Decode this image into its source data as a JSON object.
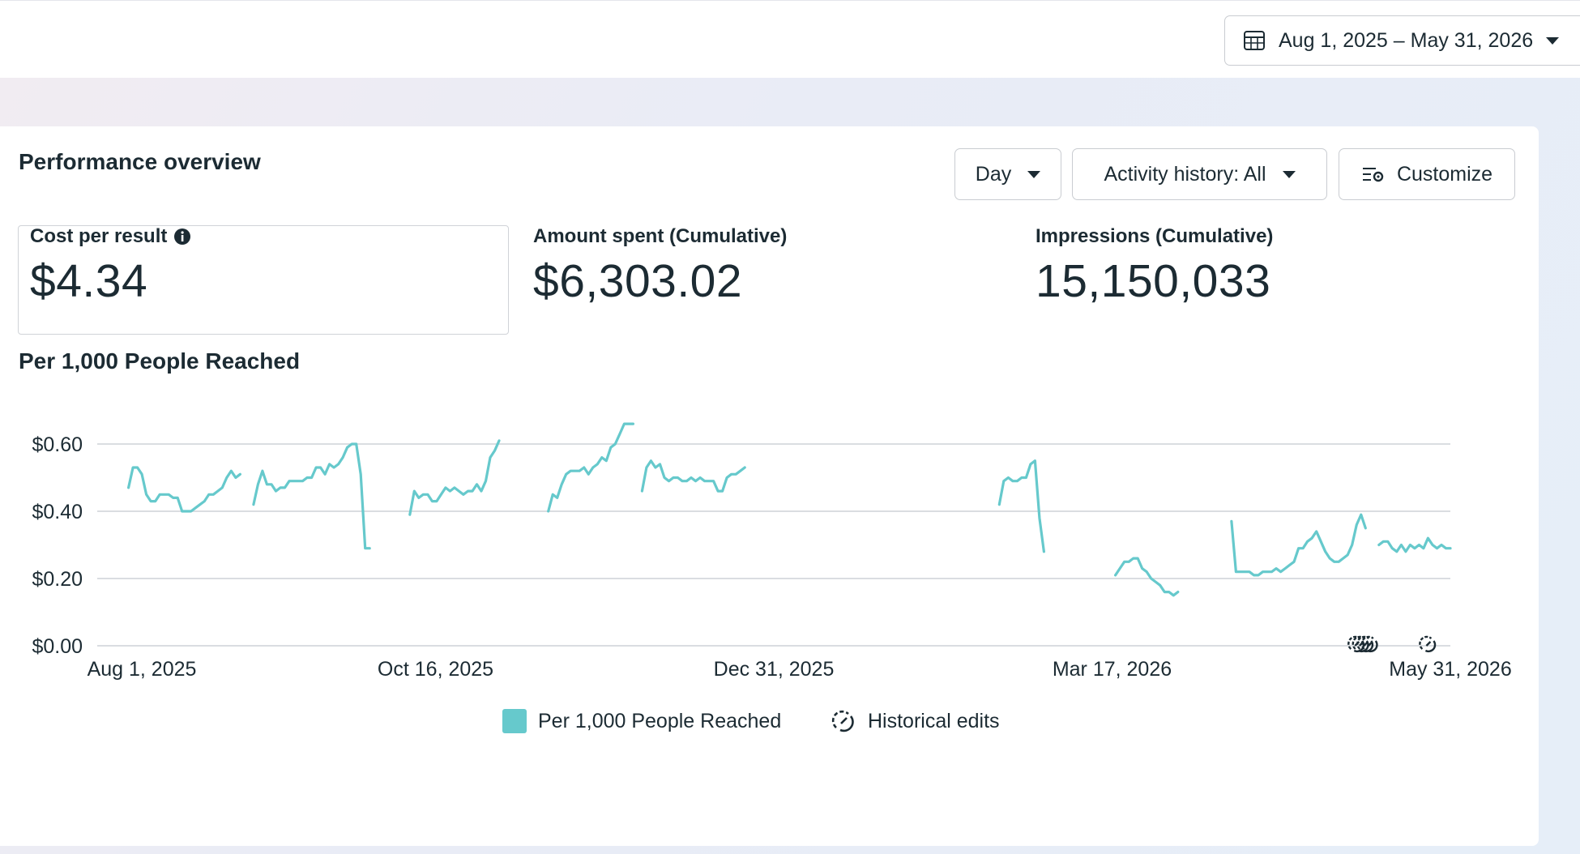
{
  "header": {
    "date_range": "Aug 1, 2025 – May 31, 2026"
  },
  "card": {
    "title": "Performance overview",
    "controls": {
      "granularity": "Day",
      "activity_history": "Activity history: All",
      "customize": "Customize"
    }
  },
  "metrics": [
    {
      "label": "Cost per result",
      "value": "$4.34"
    },
    {
      "label": "Amount spent (Cumulative)",
      "value": "$6,303.02"
    },
    {
      "label": "Impressions (Cumulative)",
      "value": "15,150,033"
    }
  ],
  "chart_title": "Per 1,000 People Reached",
  "legend": {
    "series": "Per 1,000 People Reached",
    "edits": "Historical edits"
  },
  "colors": {
    "series": "#66c9cc",
    "grid": "#dadde1",
    "text": "#1c2b33"
  },
  "chart_data": {
    "type": "line",
    "title": "Per 1,000 People Reached",
    "x_start": "2025-08-01",
    "x_end": "2026-05-31",
    "xticks": [
      "Aug 1, 2025",
      "Oct 16, 2025",
      "Dec 31, 2025",
      "Mar 17, 2026",
      "May 31, 2026"
    ],
    "yticks": [
      "$0.00",
      "$0.20",
      "$0.40",
      "$0.60"
    ],
    "ylim": [
      0,
      0.6
    ],
    "grid": true,
    "legend_position": "bottom",
    "series": [
      {
        "name": "Per 1,000 People Reached",
        "segments": [
          [
            [
              "2025-08-08",
              0.47
            ],
            [
              "2025-08-09",
              0.53
            ],
            [
              "2025-08-10",
              0.53
            ],
            [
              "2025-08-11",
              0.51
            ],
            [
              "2025-08-12",
              0.45
            ],
            [
              "2025-08-13",
              0.43
            ],
            [
              "2025-08-14",
              0.43
            ],
            [
              "2025-08-15",
              0.45
            ],
            [
              "2025-08-16",
              0.45
            ],
            [
              "2025-08-17",
              0.45
            ],
            [
              "2025-08-18",
              0.44
            ],
            [
              "2025-08-19",
              0.44
            ],
            [
              "2025-08-20",
              0.4
            ],
            [
              "2025-08-21",
              0.4
            ],
            [
              "2025-08-22",
              0.4
            ],
            [
              "2025-08-23",
              0.41
            ],
            [
              "2025-08-24",
              0.42
            ],
            [
              "2025-08-25",
              0.43
            ],
            [
              "2025-08-26",
              0.45
            ],
            [
              "2025-08-27",
              0.45
            ],
            [
              "2025-08-28",
              0.46
            ],
            [
              "2025-08-29",
              0.47
            ],
            [
              "2025-08-30",
              0.5
            ],
            [
              "2025-08-31",
              0.52
            ],
            [
              "2025-09-01",
              0.5
            ],
            [
              "2025-09-02",
              0.51
            ]
          ],
          [
            [
              "2025-09-05",
              0.42
            ],
            [
              "2025-09-06",
              0.48
            ],
            [
              "2025-09-07",
              0.52
            ],
            [
              "2025-09-08",
              0.48
            ],
            [
              "2025-09-09",
              0.48
            ],
            [
              "2025-09-10",
              0.46
            ],
            [
              "2025-09-11",
              0.47
            ],
            [
              "2025-09-12",
              0.47
            ],
            [
              "2025-09-13",
              0.49
            ],
            [
              "2025-09-14",
              0.49
            ],
            [
              "2025-09-15",
              0.49
            ],
            [
              "2025-09-16",
              0.49
            ],
            [
              "2025-09-17",
              0.5
            ],
            [
              "2025-09-18",
              0.5
            ],
            [
              "2025-09-19",
              0.53
            ],
            [
              "2025-09-20",
              0.53
            ],
            [
              "2025-09-21",
              0.51
            ],
            [
              "2025-09-22",
              0.54
            ],
            [
              "2025-09-23",
              0.53
            ],
            [
              "2025-09-24",
              0.54
            ],
            [
              "2025-09-25",
              0.56
            ],
            [
              "2025-09-26",
              0.59
            ],
            [
              "2025-09-27",
              0.6
            ],
            [
              "2025-09-28",
              0.6
            ],
            [
              "2025-09-29",
              0.51
            ],
            [
              "2025-09-30",
              0.29
            ],
            [
              "2025-10-01",
              0.29
            ]
          ],
          [
            [
              "2025-10-10",
              0.39
            ],
            [
              "2025-10-11",
              0.46
            ],
            [
              "2025-10-12",
              0.44
            ],
            [
              "2025-10-13",
              0.45
            ],
            [
              "2025-10-14",
              0.45
            ],
            [
              "2025-10-15",
              0.43
            ],
            [
              "2025-10-16",
              0.43
            ],
            [
              "2025-10-17",
              0.45
            ],
            [
              "2025-10-18",
              0.47
            ],
            [
              "2025-10-19",
              0.46
            ],
            [
              "2025-10-20",
              0.47
            ],
            [
              "2025-10-21",
              0.46
            ],
            [
              "2025-10-22",
              0.45
            ],
            [
              "2025-10-23",
              0.46
            ],
            [
              "2025-10-24",
              0.46
            ],
            [
              "2025-10-25",
              0.48
            ],
            [
              "2025-10-26",
              0.46
            ],
            [
              "2025-10-27",
              0.49
            ],
            [
              "2025-10-28",
              0.56
            ],
            [
              "2025-10-29",
              0.58
            ],
            [
              "2025-10-30",
              0.61
            ]
          ],
          [
            [
              "2025-11-10",
              0.4
            ],
            [
              "2025-11-11",
              0.45
            ],
            [
              "2025-11-12",
              0.44
            ],
            [
              "2025-11-13",
              0.48
            ],
            [
              "2025-11-14",
              0.51
            ],
            [
              "2025-11-15",
              0.52
            ],
            [
              "2025-11-16",
              0.52
            ],
            [
              "2025-11-17",
              0.52
            ],
            [
              "2025-11-18",
              0.53
            ],
            [
              "2025-11-19",
              0.51
            ],
            [
              "2025-11-20",
              0.53
            ],
            [
              "2025-11-21",
              0.54
            ],
            [
              "2025-11-22",
              0.56
            ],
            [
              "2025-11-23",
              0.55
            ],
            [
              "2025-11-24",
              0.59
            ],
            [
              "2025-11-25",
              0.6
            ],
            [
              "2025-11-26",
              0.63
            ],
            [
              "2025-11-27",
              0.66
            ],
            [
              "2025-11-28",
              0.66
            ],
            [
              "2025-11-29",
              0.66
            ]
          ],
          [
            [
              "2025-12-01",
              0.46
            ],
            [
              "2025-12-02",
              0.53
            ],
            [
              "2025-12-03",
              0.55
            ],
            [
              "2025-12-04",
              0.53
            ],
            [
              "2025-12-05",
              0.54
            ],
            [
              "2025-12-06",
              0.5
            ],
            [
              "2025-12-07",
              0.49
            ],
            [
              "2025-12-08",
              0.5
            ],
            [
              "2025-12-09",
              0.5
            ],
            [
              "2025-12-10",
              0.49
            ],
            [
              "2025-12-11",
              0.49
            ],
            [
              "2025-12-12",
              0.5
            ],
            [
              "2025-12-13",
              0.49
            ],
            [
              "2025-12-14",
              0.5
            ],
            [
              "2025-12-15",
              0.49
            ],
            [
              "2025-12-16",
              0.49
            ],
            [
              "2025-12-17",
              0.49
            ],
            [
              "2025-12-18",
              0.46
            ],
            [
              "2025-12-19",
              0.46
            ],
            [
              "2025-12-20",
              0.5
            ],
            [
              "2025-12-21",
              0.51
            ],
            [
              "2025-12-22",
              0.51
            ],
            [
              "2025-12-23",
              0.52
            ],
            [
              "2025-12-24",
              0.53
            ]
          ],
          [
            [
              "2026-02-19",
              0.42
            ],
            [
              "2026-02-20",
              0.49
            ],
            [
              "2026-02-21",
              0.5
            ],
            [
              "2026-02-22",
              0.49
            ],
            [
              "2026-02-23",
              0.49
            ],
            [
              "2026-02-24",
              0.5
            ],
            [
              "2026-02-25",
              0.5
            ],
            [
              "2026-02-26",
              0.54
            ],
            [
              "2026-02-27",
              0.55
            ],
            [
              "2026-02-28",
              0.38
            ],
            [
              "2026-03-01",
              0.28
            ]
          ],
          [
            [
              "2026-03-17",
              0.21
            ],
            [
              "2026-03-18",
              0.23
            ],
            [
              "2026-03-19",
              0.25
            ],
            [
              "2026-03-20",
              0.25
            ],
            [
              "2026-03-21",
              0.26
            ],
            [
              "2026-03-22",
              0.26
            ],
            [
              "2026-03-23",
              0.23
            ],
            [
              "2026-03-24",
              0.22
            ],
            [
              "2026-03-25",
              0.2
            ],
            [
              "2026-03-26",
              0.19
            ],
            [
              "2026-03-27",
              0.18
            ],
            [
              "2026-03-28",
              0.16
            ],
            [
              "2026-03-29",
              0.16
            ],
            [
              "2026-03-30",
              0.15
            ],
            [
              "2026-03-31",
              0.16
            ]
          ],
          [
            [
              "2026-04-12",
              0.37
            ],
            [
              "2026-04-13",
              0.22
            ],
            [
              "2026-04-14",
              0.22
            ],
            [
              "2026-04-15",
              0.22
            ],
            [
              "2026-04-16",
              0.22
            ],
            [
              "2026-04-17",
              0.21
            ],
            [
              "2026-04-18",
              0.21
            ],
            [
              "2026-04-19",
              0.22
            ],
            [
              "2026-04-20",
              0.22
            ],
            [
              "2026-04-21",
              0.22
            ],
            [
              "2026-04-22",
              0.23
            ],
            [
              "2026-04-23",
              0.22
            ],
            [
              "2026-04-24",
              0.23
            ],
            [
              "2026-04-25",
              0.24
            ],
            [
              "2026-04-26",
              0.25
            ],
            [
              "2026-04-27",
              0.29
            ],
            [
              "2026-04-28",
              0.29
            ],
            [
              "2026-04-29",
              0.31
            ],
            [
              "2026-04-30",
              0.32
            ],
            [
              "2026-05-01",
              0.34
            ],
            [
              "2026-05-02",
              0.31
            ],
            [
              "2026-05-03",
              0.28
            ],
            [
              "2026-05-04",
              0.26
            ],
            [
              "2026-05-05",
              0.25
            ],
            [
              "2026-05-06",
              0.25
            ],
            [
              "2026-05-07",
              0.26
            ],
            [
              "2026-05-08",
              0.27
            ],
            [
              "2026-05-09",
              0.3
            ],
            [
              "2026-05-10",
              0.36
            ],
            [
              "2026-05-11",
              0.39
            ],
            [
              "2026-05-12",
              0.35
            ]
          ],
          [
            [
              "2026-05-15",
              0.3
            ],
            [
              "2026-05-16",
              0.31
            ],
            [
              "2026-05-17",
              0.31
            ],
            [
              "2026-05-18",
              0.29
            ],
            [
              "2026-05-19",
              0.28
            ],
            [
              "2026-05-20",
              0.3
            ],
            [
              "2026-05-21",
              0.28
            ],
            [
              "2026-05-22",
              0.3
            ],
            [
              "2026-05-23",
              0.29
            ],
            [
              "2026-05-24",
              0.3
            ],
            [
              "2026-05-25",
              0.29
            ],
            [
              "2026-05-26",
              0.32
            ],
            [
              "2026-05-27",
              0.3
            ],
            [
              "2026-05-28",
              0.29
            ],
            [
              "2026-05-29",
              0.3
            ],
            [
              "2026-05-30",
              0.29
            ],
            [
              "2026-05-31",
              0.29
            ]
          ]
        ]
      }
    ],
    "historical_edit_dates": [
      "2026-05-10",
      "2026-05-11",
      "2026-05-12",
      "2026-05-13",
      "2026-05-26"
    ]
  }
}
